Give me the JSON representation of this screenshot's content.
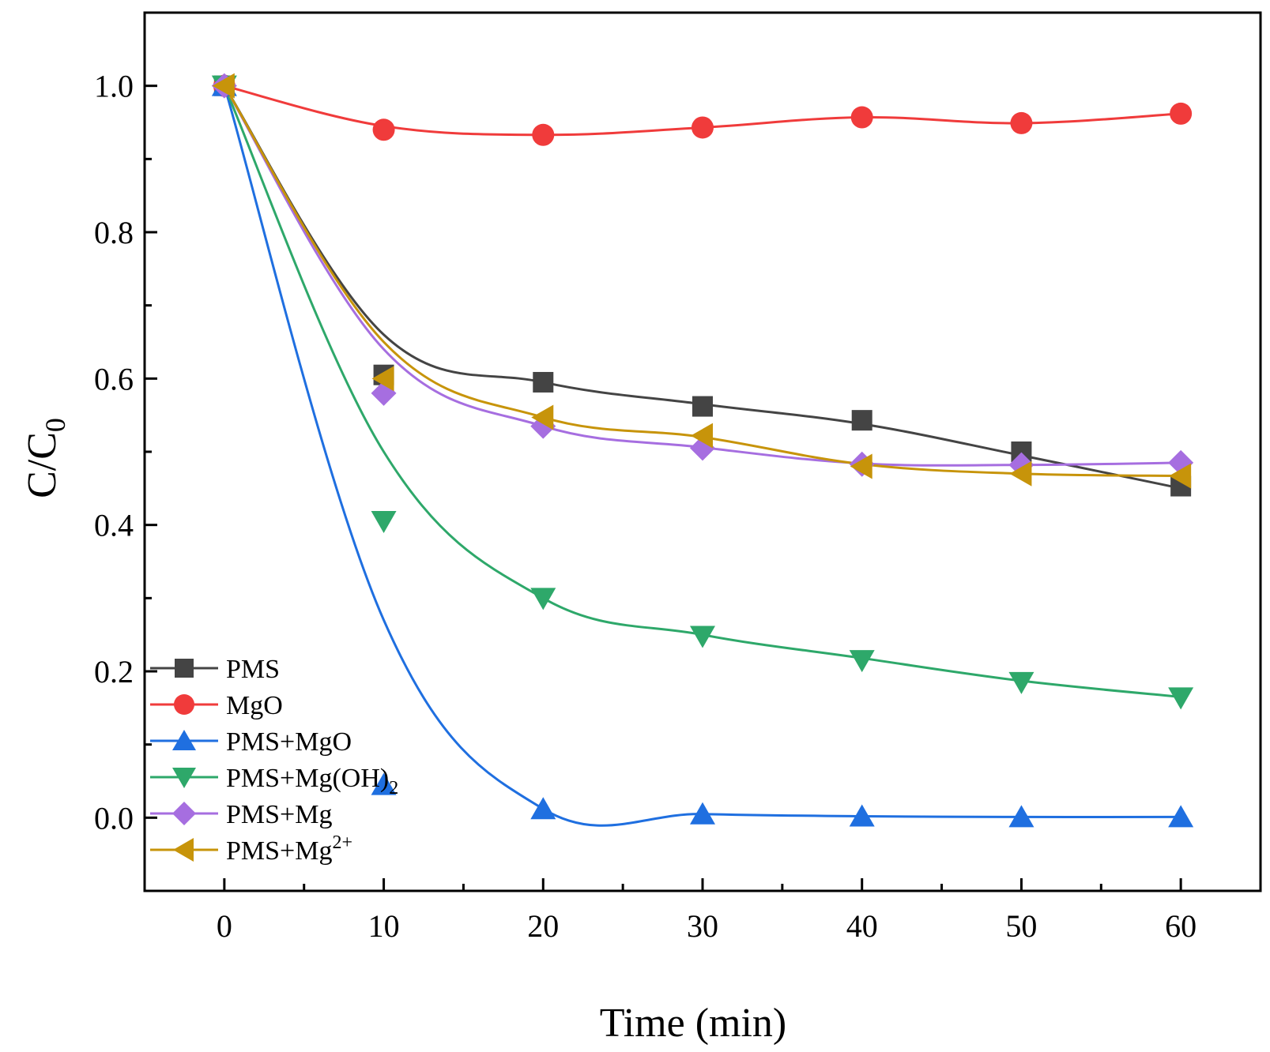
{
  "chart_data": {
    "type": "line",
    "title": "",
    "xlabel": "Time (min)",
    "ylabel_base": "C/C",
    "ylabel_sub": "0",
    "xlim": [
      -5,
      65
    ],
    "ylim": [
      -0.1,
      1.1
    ],
    "xticks": [
      0,
      10,
      20,
      30,
      40,
      50,
      60
    ],
    "yticks": [
      0.0,
      0.2,
      0.4,
      0.6,
      0.8,
      1.0
    ],
    "xtick_labels": [
      "0",
      "10",
      "20",
      "30",
      "40",
      "50",
      "60"
    ],
    "ytick_labels": [
      "0.0",
      "0.2",
      "0.4",
      "0.6",
      "0.8",
      "1.0"
    ],
    "grid": false,
    "legend_position": "bottom-left",
    "x": [
      0,
      10,
      20,
      30,
      40,
      50,
      60
    ],
    "series": [
      {
        "name": "PMS",
        "label": "PMS",
        "label_sup": "",
        "label_sub": "",
        "color": "#444444",
        "marker": "square",
        "values": [
          1.0,
          0.605,
          0.595,
          0.562,
          0.543,
          0.5,
          0.453
        ],
        "fit": [
          1.0,
          0.66,
          0.595,
          0.565,
          0.538,
          0.495,
          0.45
        ]
      },
      {
        "name": "MgO",
        "label": "MgO",
        "label_sup": "",
        "label_sub": "",
        "color": "#f03b3b",
        "marker": "circle",
        "values": [
          1.0,
          0.94,
          0.933,
          0.943,
          0.957,
          0.949,
          0.962
        ],
        "fit": [
          1.0,
          0.945,
          0.933,
          0.943,
          0.957,
          0.949,
          0.962
        ]
      },
      {
        "name": "PMS+MgO",
        "label": "PMS+MgO",
        "label_sup": "",
        "label_sub": "",
        "color": "#1f6fe0",
        "marker": "triangle-up",
        "values": [
          1.0,
          0.045,
          0.012,
          0.005,
          0.002,
          0.001,
          0.001
        ],
        "fit": [
          1.0,
          0.27,
          0.012,
          0.005,
          0.002,
          0.001,
          0.001
        ]
      },
      {
        "name": "PMS+Mg(OH)2",
        "label": "PMS+Mg(OH)",
        "label_sup": "",
        "label_sub": "2",
        "color": "#2ea86a",
        "marker": "triangle-down",
        "values": [
          1.0,
          0.405,
          0.3,
          0.248,
          0.215,
          0.185,
          0.164
        ],
        "fit": [
          1.0,
          0.5,
          0.3,
          0.25,
          0.218,
          0.187,
          0.165
        ]
      },
      {
        "name": "PMS+Mg",
        "label": "PMS+Mg",
        "label_sup": "",
        "label_sub": "",
        "color": "#a66ee0",
        "marker": "diamond",
        "values": [
          1.0,
          0.58,
          0.535,
          0.505,
          0.483,
          0.482,
          0.485
        ],
        "fit": [
          1.0,
          0.64,
          0.535,
          0.506,
          0.484,
          0.482,
          0.485
        ]
      },
      {
        "name": "PMS+Mg2+",
        "label": "PMS+Mg",
        "label_sup": "2+",
        "label_sub": "",
        "color": "#c7940a",
        "marker": "triangle-left",
        "values": [
          1.0,
          0.6,
          0.547,
          0.522,
          0.48,
          0.47,
          0.467
        ],
        "fit": [
          1.0,
          0.65,
          0.547,
          0.52,
          0.483,
          0.47,
          0.467
        ]
      }
    ]
  }
}
